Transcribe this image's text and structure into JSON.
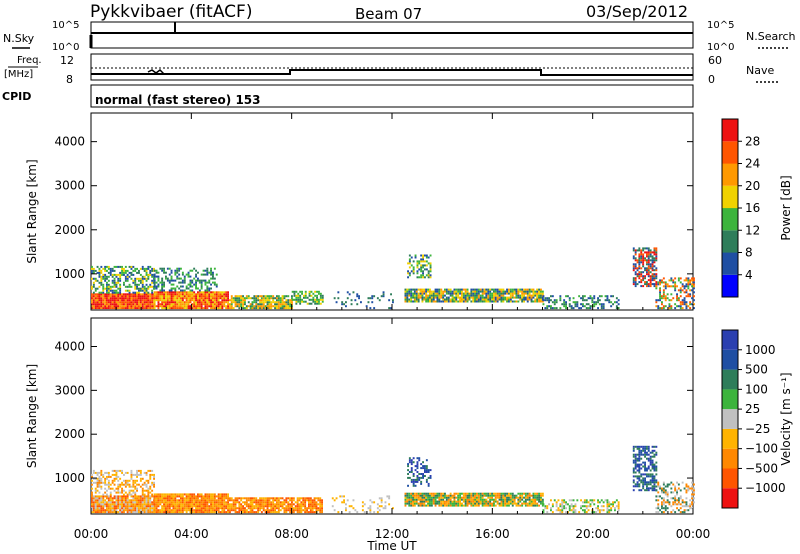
{
  "header": {
    "station": "Pykkvibaer (fitACF)",
    "beam": "Beam 07",
    "date": "03/Sep/2012"
  },
  "strips": {
    "nsky_label": "N.Sky",
    "nsearch_label": "N.Search",
    "nsky_ticks": [
      "10^5",
      "10^0"
    ],
    "nsearch_ticks": [
      "10^5",
      "10^0"
    ],
    "freq_label": "Freq.",
    "freq_unit": "[MHz]",
    "freq_ticks": [
      "12",
      "8"
    ],
    "nave_label": "Nave",
    "nave_ticks": [
      "60",
      "0"
    ],
    "cpid_label": "CPID",
    "cpid_text": "normal (fast stereo) 153"
  },
  "colors": {
    "power_scale": [
      "#0000ff",
      "#1f4fa3",
      "#2e7d5a",
      "#3cb43c",
      "#f0d200",
      "#ff9900",
      "#ff5500",
      "#ee1111"
    ],
    "velocity_scale": [
      "#ee1111",
      "#ff5500",
      "#ff8800",
      "#ffb300",
      "#c0c0c0",
      "#3cb43c",
      "#2e7d5a",
      "#1f4fa3",
      "#2b3fb0"
    ]
  },
  "chart_data": [
    {
      "type": "heatmap",
      "title": "Power",
      "xlabel": "",
      "ylabel": "Slant Range [km]",
      "x_ticks": [
        "00:00",
        "04:00",
        "08:00",
        "12:00",
        "16:00",
        "20:00",
        "00:00"
      ],
      "y_ticks": [
        "1000",
        "2000",
        "3000",
        "4000"
      ],
      "xlim_hours": [
        0,
        24
      ],
      "ylim_km": [
        180,
        4650
      ],
      "colorbar_label": "Power [dB]",
      "colorbar_ticks": [
        "4",
        "8",
        "12",
        "16",
        "20",
        "24",
        "28"
      ],
      "clim": [
        0,
        32
      ],
      "scatter_regions": [
        {
          "t0": 0.0,
          "t1": 2.5,
          "r0": 200,
          "r1": 550,
          "dens": 1.0,
          "palette": [
            6,
            7,
            7,
            5
          ]
        },
        {
          "t0": 0.0,
          "t1": 2.5,
          "r0": 550,
          "r1": 1150,
          "dens": 0.55,
          "palette": [
            1,
            2,
            3,
            4
          ]
        },
        {
          "t0": 2.5,
          "t1": 5.5,
          "r0": 200,
          "r1": 600,
          "dens": 0.95,
          "palette": [
            5,
            6,
            7,
            4
          ]
        },
        {
          "t0": 2.5,
          "t1": 5.0,
          "r0": 600,
          "r1": 1100,
          "dens": 0.45,
          "palette": [
            1,
            2,
            3
          ]
        },
        {
          "t0": 5.5,
          "t1": 8.0,
          "r0": 200,
          "r1": 500,
          "dens": 0.85,
          "palette": [
            3,
            4,
            5,
            2
          ]
        },
        {
          "t0": 8.0,
          "t1": 9.2,
          "r0": 300,
          "r1": 600,
          "dens": 0.6,
          "palette": [
            3,
            4,
            2
          ]
        },
        {
          "t0": 9.6,
          "t1": 12.0,
          "r0": 200,
          "r1": 600,
          "dens": 0.15,
          "palette": [
            1,
            2
          ]
        },
        {
          "t0": 12.6,
          "t1": 13.5,
          "r0": 900,
          "r1": 1400,
          "dens": 0.45,
          "palette": [
            1,
            2,
            3,
            4
          ]
        },
        {
          "t0": 12.5,
          "t1": 18.0,
          "r0": 350,
          "r1": 650,
          "dens": 0.9,
          "palette": [
            1,
            2,
            3,
            4,
            5
          ]
        },
        {
          "t0": 18.0,
          "t1": 21.0,
          "r0": 200,
          "r1": 500,
          "dens": 0.45,
          "palette": [
            1,
            2,
            3
          ]
        },
        {
          "t0": 21.6,
          "t1": 22.5,
          "r0": 700,
          "r1": 1600,
          "dens": 0.65,
          "palette": [
            1,
            2,
            6,
            7
          ]
        },
        {
          "t0": 22.5,
          "t1": 24.0,
          "r0": 200,
          "r1": 900,
          "dens": 0.45,
          "palette": [
            1,
            3,
            5,
            6
          ]
        }
      ]
    },
    {
      "type": "heatmap",
      "title": "Velocity",
      "xlabel": "Time UT",
      "ylabel": "Slant Range [km]",
      "x_ticks": [
        "00:00",
        "04:00",
        "08:00",
        "12:00",
        "16:00",
        "20:00",
        "00:00"
      ],
      "y_ticks": [
        "1000",
        "2000",
        "3000",
        "4000"
      ],
      "xlim_hours": [
        0,
        24
      ],
      "ylim_km": [
        180,
        4650
      ],
      "colorbar_label": "Velocity [m s⁻¹]",
      "colorbar_ticks": [
        "1000",
        "500",
        "100",
        "25",
        "−25",
        "−100",
        "−500",
        "−1000"
      ],
      "clim": [
        -1000,
        1000
      ],
      "scatter_regions": [
        {
          "t0": 0.0,
          "t1": 2.5,
          "r0": 200,
          "r1": 600,
          "dens": 0.95,
          "palette": [
            2,
            3,
            4,
            1
          ]
        },
        {
          "t0": 0.0,
          "t1": 2.5,
          "r0": 600,
          "r1": 1150,
          "dens": 0.45,
          "palette": [
            4,
            3,
            2
          ]
        },
        {
          "t0": 2.5,
          "t1": 5.5,
          "r0": 200,
          "r1": 650,
          "dens": 0.95,
          "palette": [
            1,
            2,
            3
          ]
        },
        {
          "t0": 5.5,
          "t1": 9.2,
          "r0": 200,
          "r1": 550,
          "dens": 0.85,
          "palette": [
            2,
            3,
            1
          ]
        },
        {
          "t0": 9.6,
          "t1": 12.0,
          "r0": 200,
          "r1": 600,
          "dens": 0.15,
          "palette": [
            4,
            3
          ]
        },
        {
          "t0": 12.6,
          "t1": 13.5,
          "r0": 800,
          "r1": 1450,
          "dens": 0.45,
          "palette": [
            7,
            8,
            6
          ]
        },
        {
          "t0": 12.5,
          "t1": 18.0,
          "r0": 350,
          "r1": 650,
          "dens": 0.9,
          "palette": [
            2,
            3,
            5,
            6
          ]
        },
        {
          "t0": 18.0,
          "t1": 21.0,
          "r0": 200,
          "r1": 500,
          "dens": 0.45,
          "palette": [
            4,
            5,
            3
          ]
        },
        {
          "t0": 21.6,
          "t1": 22.5,
          "r0": 700,
          "r1": 1700,
          "dens": 0.65,
          "palette": [
            6,
            7,
            8
          ]
        },
        {
          "t0": 22.5,
          "t1": 24.0,
          "r0": 200,
          "r1": 900,
          "dens": 0.45,
          "palette": [
            4,
            2,
            6
          ]
        }
      ]
    }
  ]
}
